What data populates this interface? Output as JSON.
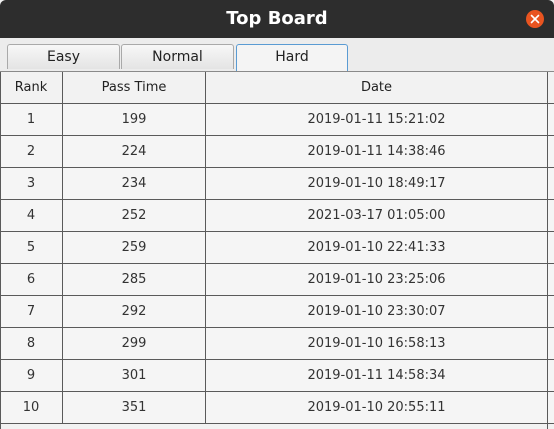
{
  "window": {
    "title": "Top Board"
  },
  "tabs": [
    {
      "label": "Easy",
      "active": false
    },
    {
      "label": "Normal",
      "active": false
    },
    {
      "label": "Hard",
      "active": true
    }
  ],
  "table": {
    "headers": [
      "Rank",
      "Pass Time",
      "Date"
    ],
    "rows": [
      [
        "1",
        "199",
        "2019-01-11 15:21:02"
      ],
      [
        "2",
        "224",
        "2019-01-11 14:38:46"
      ],
      [
        "3",
        "234",
        "2019-01-10 18:49:17"
      ],
      [
        "4",
        "252",
        "2021-03-17 01:05:00"
      ],
      [
        "5",
        "259",
        "2019-01-10 22:41:33"
      ],
      [
        "6",
        "285",
        "2019-01-10 23:25:06"
      ],
      [
        "7",
        "292",
        "2019-01-10 23:30:07"
      ],
      [
        "8",
        "299",
        "2019-01-10 16:58:13"
      ],
      [
        "9",
        "301",
        "2019-01-11 14:58:34"
      ],
      [
        "10",
        "351",
        "2019-01-10 20:55:11"
      ]
    ]
  },
  "colors": {
    "titlebar": "#2d2d2d",
    "close_button": "#e95420",
    "active_tab_border": "#5a9bd3"
  },
  "icons": {
    "close": "close-icon"
  }
}
